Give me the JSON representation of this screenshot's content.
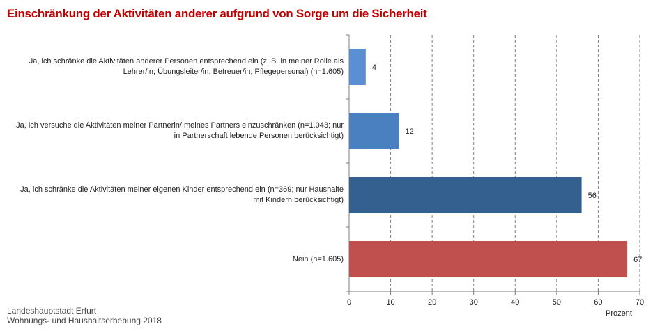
{
  "title": "Einschränkung der Aktivitäten anderer aufgrund von Sorge um die Sicherheit",
  "source": {
    "line1": "Landeshauptstadt Erfurt",
    "line2": "Wohnungs- und Haushaltserhebung 2018"
  },
  "chart_data": {
    "type": "bar",
    "orientation": "horizontal",
    "categories": [
      "Ja, ich schränke die Aktivitäten anderer Personen entsprechend ein (z. B. in meiner Rolle als Lehrer/in; Übungsleiter/in; Betreuer/in; Pflegepersonal) (n=1.605)",
      "Ja, ich versuche die Aktivitäten meiner Partnerin/ meines Partners einzuschränken (n=1.043; nur in Partnerschaft lebende Personen berücksichtigt)",
      "Ja, ich schränke die Aktivitäten meiner eigenen Kinder entsprechend ein (n=369; nur Haushalte mit Kindern berücksichtigt)",
      "Nein (n=1.605)"
    ],
    "values": [
      4,
      12,
      56,
      67
    ],
    "value_labels": [
      "4",
      "12",
      "56",
      "67"
    ],
    "colors": [
      "#5b8fd3",
      "#4a7fc0",
      "#34608f",
      "#c0504d"
    ],
    "xlim": [
      0,
      70
    ],
    "xticks": [
      "0",
      "10",
      "20",
      "30",
      "40",
      "50",
      "60",
      "70"
    ],
    "xlabel": "Prozent",
    "grid": true
  }
}
